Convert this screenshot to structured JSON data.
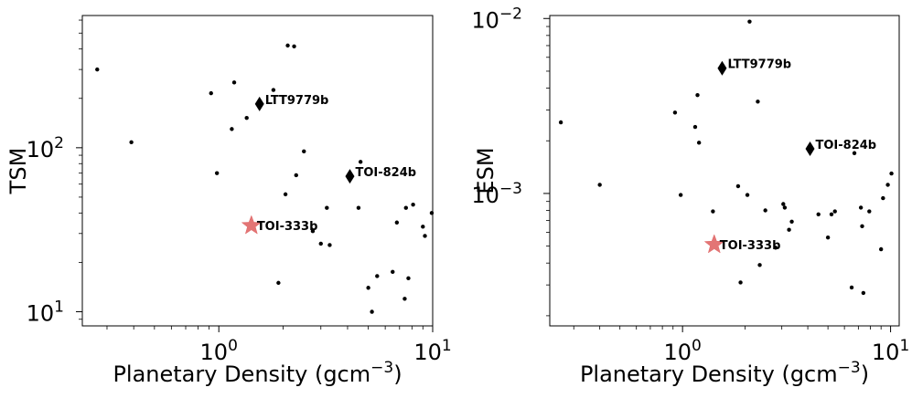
{
  "chart_data": [
    {
      "type": "scatter",
      "xlabel": "Planetary Density (gcm",
      "xlabel_sup": "−3",
      "xlabel_close": ")",
      "ylabel": "TSM",
      "xscale": "log",
      "yscale": "log",
      "xlim": [
        0.23,
        10.0
      ],
      "ylim": [
        8.2,
        640
      ],
      "x_ticks": [
        {
          "value": 1,
          "base": "10",
          "exp": "0"
        },
        {
          "value": 10,
          "base": "10",
          "exp": "1"
        }
      ],
      "y_ticks": [
        {
          "value": 10,
          "base": "10",
          "exp": "1"
        },
        {
          "value": 100,
          "base": "10",
          "exp": "2"
        }
      ],
      "grid": false,
      "points": [
        [
          0.27,
          300
        ],
        [
          0.39,
          108
        ],
        [
          0.92,
          215
        ],
        [
          0.98,
          70
        ],
        [
          1.15,
          130
        ],
        [
          1.18,
          250
        ],
        [
          1.35,
          152
        ],
        [
          1.8,
          225
        ],
        [
          1.9,
          15
        ],
        [
          2.05,
          52
        ],
        [
          2.1,
          420
        ],
        [
          2.25,
          415
        ],
        [
          2.3,
          68
        ],
        [
          2.5,
          95
        ],
        [
          2.75,
          31
        ],
        [
          3.0,
          26
        ],
        [
          3.2,
          43
        ],
        [
          3.3,
          25.5
        ],
        [
          4.5,
          43
        ],
        [
          4.6,
          82
        ],
        [
          5.0,
          14
        ],
        [
          5.2,
          10
        ],
        [
          5.5,
          16.5
        ],
        [
          6.5,
          17.5
        ],
        [
          6.8,
          35
        ],
        [
          7.4,
          12
        ],
        [
          7.5,
          43
        ],
        [
          7.7,
          16
        ],
        [
          8.1,
          45
        ],
        [
          9.0,
          33
        ],
        [
          9.2,
          29
        ],
        [
          9.9,
          40
        ]
      ],
      "highlights": [
        {
          "label": "LTT9779b",
          "x": 1.55,
          "y": 185,
          "marker": "diamond",
          "color": "#000000"
        },
        {
          "label": "TOI-824b",
          "x": 4.1,
          "y": 67,
          "marker": "diamond",
          "color": "#000000"
        },
        {
          "label": "TOI-333b",
          "x": 1.42,
          "y": 33.5,
          "marker": "star",
          "color": "#e06666"
        }
      ]
    },
    {
      "type": "scatter",
      "xlabel": "Planetary Density (gcm",
      "xlabel_sup": "−3",
      "xlabel_close": ")",
      "ylabel": "ESM",
      "xscale": "log",
      "yscale": "log",
      "xlim": [
        0.23,
        11.0
      ],
      "ylim": [
        0.000175,
        0.0104
      ],
      "x_ticks": [
        {
          "value": 1,
          "base": "10",
          "exp": "0"
        },
        {
          "value": 10,
          "base": "10",
          "exp": "1"
        }
      ],
      "y_ticks": [
        {
          "value": 0.001,
          "base": "10",
          "exp": "−3"
        },
        {
          "value": 0.01,
          "base": "10",
          "exp": "−2"
        }
      ],
      "grid": false,
      "points": [
        [
          0.26,
          0.00255
        ],
        [
          0.4,
          0.00112
        ],
        [
          0.92,
          0.0029
        ],
        [
          0.98,
          0.00098
        ],
        [
          1.15,
          0.0024
        ],
        [
          1.18,
          0.00365
        ],
        [
          1.2,
          0.00195
        ],
        [
          1.4,
          0.00079
        ],
        [
          1.85,
          0.0011
        ],
        [
          1.9,
          0.00031
        ],
        [
          2.05,
          0.00098
        ],
        [
          2.1,
          0.0096
        ],
        [
          2.3,
          0.00335
        ],
        [
          2.35,
          0.00039
        ],
        [
          2.5,
          0.0008
        ],
        [
          2.8,
          0.00049
        ],
        [
          3.05,
          0.00087
        ],
        [
          3.1,
          0.00083
        ],
        [
          3.25,
          0.00062
        ],
        [
          3.35,
          0.00069
        ],
        [
          4.5,
          0.00076
        ],
        [
          5.0,
          0.00056
        ],
        [
          5.2,
          0.00076
        ],
        [
          5.4,
          0.00079
        ],
        [
          6.5,
          0.00029
        ],
        [
          6.7,
          0.0017
        ],
        [
          7.2,
          0.00083
        ],
        [
          7.3,
          0.00065
        ],
        [
          7.4,
          0.00027
        ],
        [
          7.9,
          0.00079
        ],
        [
          9.0,
          0.00048
        ],
        [
          9.2,
          0.00094
        ],
        [
          9.7,
          0.00112
        ],
        [
          10.1,
          0.0013
        ]
      ],
      "highlights": [
        {
          "label": "LTT9779b",
          "x": 1.55,
          "y": 0.0052,
          "marker": "diamond",
          "color": "#000000"
        },
        {
          "label": "TOI-824b",
          "x": 4.1,
          "y": 0.0018,
          "marker": "diamond",
          "color": "#000000"
        },
        {
          "label": "TOI-333b",
          "x": 1.42,
          "y": 0.00051,
          "marker": "star",
          "color": "#e06666"
        }
      ]
    }
  ]
}
